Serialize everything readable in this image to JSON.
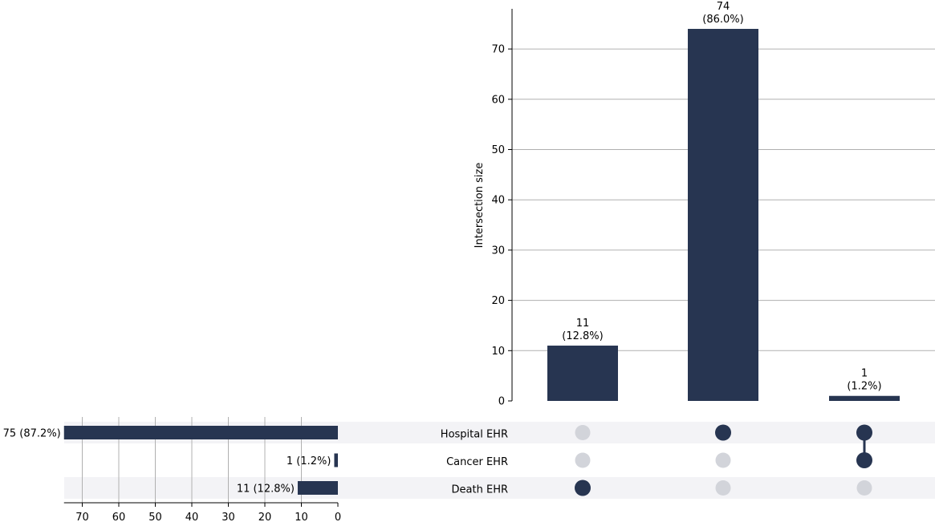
{
  "chart_data": {
    "type": "upset",
    "colors": {
      "bar": "#273551",
      "dot_active": "#273551",
      "dot_inactive": "#d2d4da",
      "row_shade": "#f3f3f6",
      "grid": "#b0b0b0"
    },
    "sets": [
      {
        "name": "Hospital EHR",
        "size": 75,
        "label": "75 (87.2%)"
      },
      {
        "name": "Cancer EHR",
        "size": 1,
        "label": "1 (1.2%)"
      },
      {
        "name": "Death EHR",
        "size": 11,
        "label": "11 (12.8%)"
      }
    ],
    "intersections": [
      {
        "members": [
          "Death EHR"
        ],
        "size": 11,
        "label_count": "11",
        "label_pct": "(12.8%)"
      },
      {
        "members": [
          "Hospital EHR"
        ],
        "size": 74,
        "label_count": "74",
        "label_pct": "(86.0%)"
      },
      {
        "members": [
          "Hospital EHR",
          "Cancer EHR"
        ],
        "size": 1,
        "label_count": "1",
        "label_pct": "(1.2%)"
      }
    ],
    "intersection_axis": {
      "ylabel": "Intersection size",
      "ylim": [
        0,
        78
      ],
      "ticks": [
        "0",
        "10",
        "20",
        "30",
        "40",
        "50",
        "60",
        "70"
      ],
      "grid": true
    },
    "set_size_axis": {
      "xlim": [
        0,
        75
      ],
      "ticks": [
        "0",
        "10",
        "20",
        "30",
        "40",
        "50",
        "60",
        "70"
      ],
      "direction": "reversed",
      "grid": true
    }
  }
}
